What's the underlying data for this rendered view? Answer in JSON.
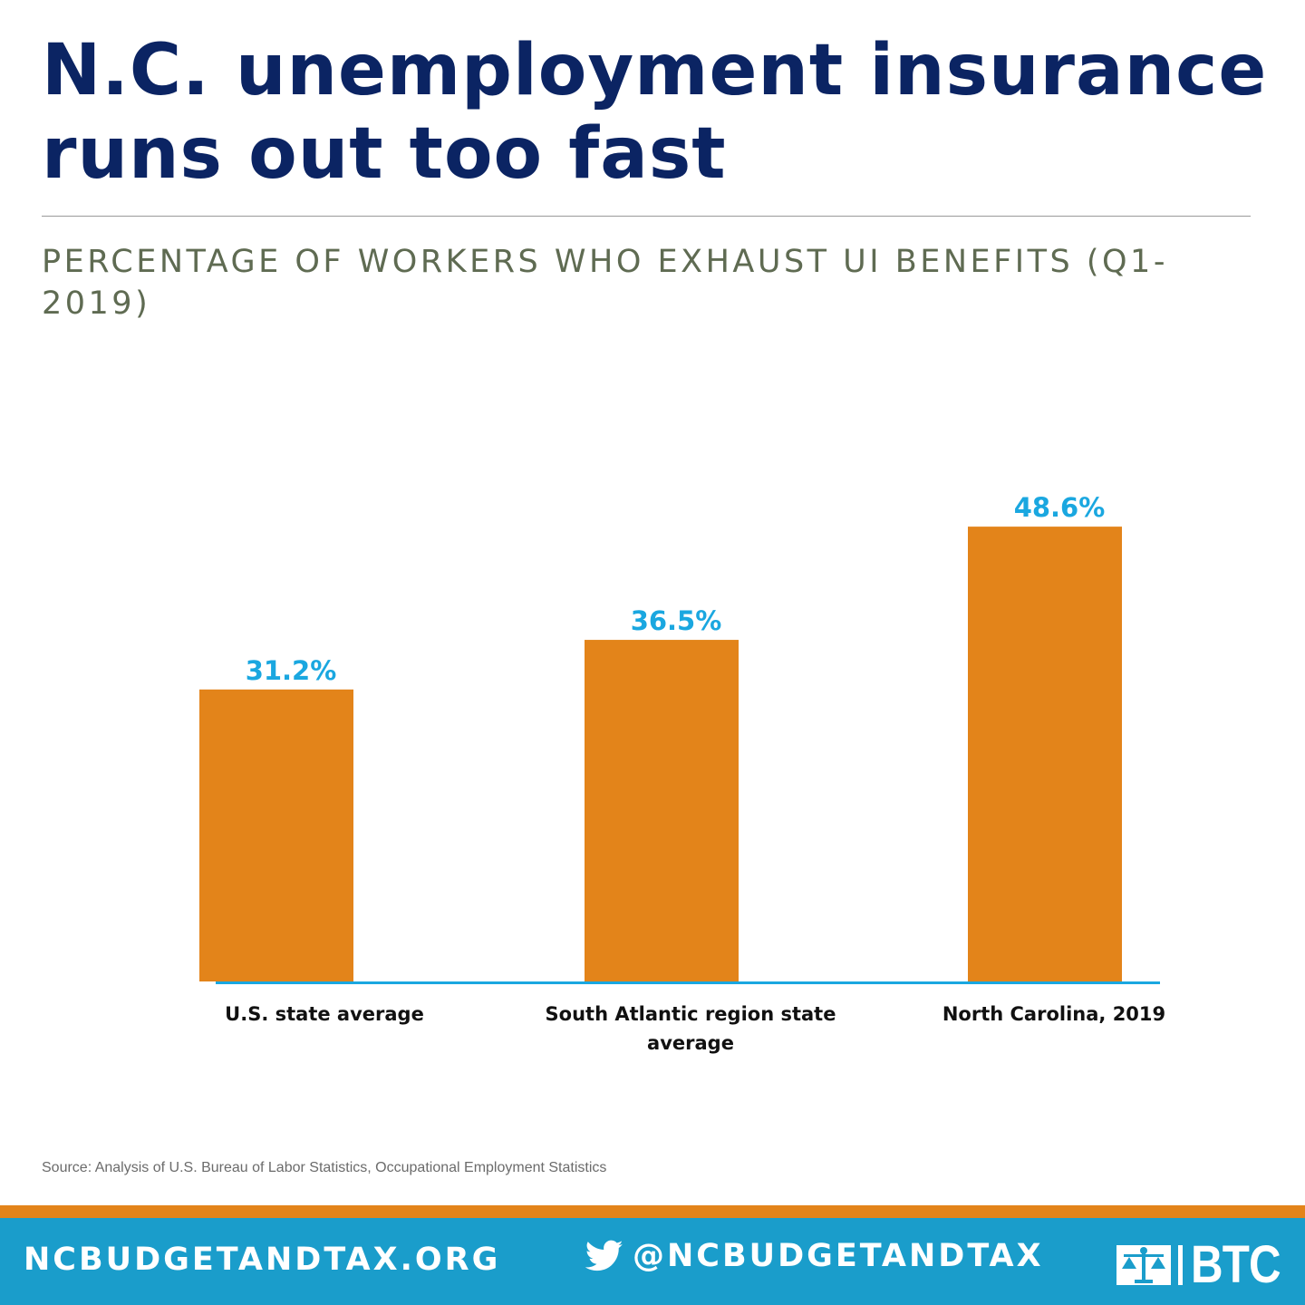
{
  "headline": "N.C. unemployment insurance runs out too fast",
  "source": "Source: Analysis of U.S. Bureau of Labor Statistics, Occupational Employment Statistics",
  "footer": {
    "website": "NCBUDGETANDTAX.ORG",
    "twitter_handle": "@NCBUDGETANDTAX",
    "logo_text": "BTC",
    "icons": [
      "twitter-bird-icon",
      "justice-scale-logo-icon"
    ]
  },
  "colors": {
    "headline": "#0b2463",
    "subtitle": "#5f6b52",
    "bar": "#e3841a",
    "data_label": "#1aa7e0",
    "axis": "#1aa7e0",
    "footer_band": "#1a9dcb",
    "footer_stripe": "#e3841a"
  },
  "chart_data": {
    "type": "bar",
    "title": "PERCENTAGE OF WORKERS WHO EXHAUST UI BENEFITS (Q1-2019)",
    "categories": [
      "U.S. state average",
      "South Atlantic region state average",
      "North Carolina, 2019"
    ],
    "values": [
      31.2,
      36.5,
      48.6
    ],
    "value_labels": [
      "31.2%",
      "36.5%",
      "48.6%"
    ],
    "ylim": [
      0,
      52
    ],
    "grid": false,
    "legend": "none"
  }
}
